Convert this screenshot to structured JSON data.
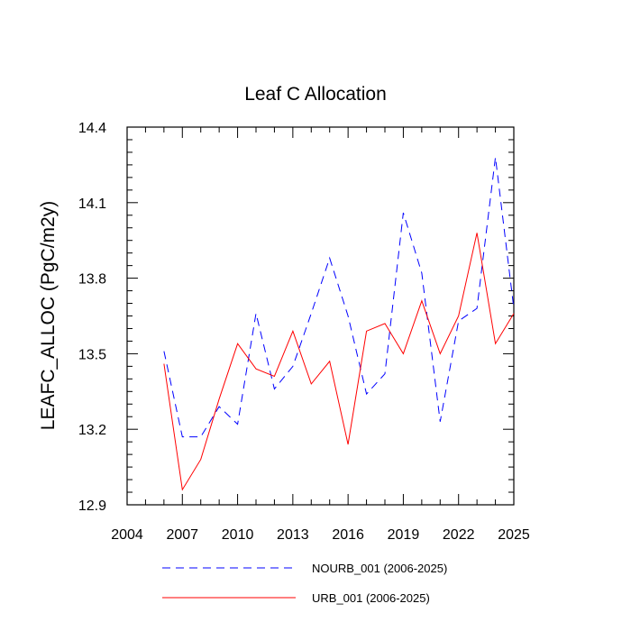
{
  "chart_data": {
    "type": "line",
    "title": "Leaf C Allocation",
    "xlabel": "",
    "ylabel": "LEAFC_ALLOC  (PgC/m2y)",
    "xlim": [
      2004,
      2025
    ],
    "ylim": [
      12.9,
      14.4
    ],
    "xticks": [
      2004,
      2007,
      2010,
      2013,
      2016,
      2019,
      2022,
      2025
    ],
    "yticks": [
      12.9,
      13.2,
      13.5,
      13.8,
      14.1,
      14.4
    ],
    "ytick_labels": [
      "12.9",
      "13.2",
      "13.5",
      "13.8",
      "14.1",
      "14.4"
    ],
    "x": [
      2006,
      2007,
      2008,
      2009,
      2010,
      2011,
      2012,
      2013,
      2014,
      2015,
      2016,
      2017,
      2018,
      2019,
      2020,
      2021,
      2022,
      2023,
      2024,
      2025
    ],
    "series": [
      {
        "name": "NOURB_001 (2006-2025)",
        "color": "#0000ff",
        "style": "dashed",
        "values": [
          13.51,
          13.17,
          13.17,
          13.29,
          13.22,
          13.66,
          13.36,
          13.45,
          13.66,
          13.88,
          13.65,
          13.34,
          13.42,
          14.06,
          13.82,
          13.23,
          13.63,
          13.68,
          14.28,
          13.68
        ]
      },
      {
        "name": "URB_001 (2006-2025)",
        "color": "#ff0000",
        "style": "solid",
        "values": [
          13.46,
          12.96,
          13.08,
          13.32,
          13.54,
          13.44,
          13.41,
          13.59,
          13.38,
          13.47,
          13.14,
          13.59,
          13.62,
          13.5,
          13.71,
          13.5,
          13.65,
          13.98,
          13.54,
          13.66
        ]
      }
    ],
    "legend_position": "bottom"
  }
}
